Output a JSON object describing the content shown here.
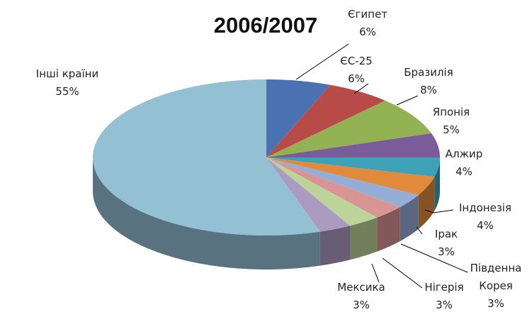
{
  "chart_data": {
    "type": "pie",
    "title": "2006/2007",
    "categories": [
      "Єгипет",
      "ЄС-25",
      "Бразилія",
      "Японія",
      "Алжир",
      "Індонезія",
      "Ірак",
      "Південна Корея",
      "Нігерія",
      "Мексика",
      "Інші країни"
    ],
    "values": [
      6,
      6,
      8,
      5,
      4,
      4,
      3,
      3,
      3,
      3,
      55
    ],
    "value_labels": [
      "6%",
      "6%",
      "8%",
      "5%",
      "4%",
      "4%",
      "3%",
      "3%",
      "3%",
      "3%",
      "55%"
    ],
    "colors": [
      "#4a72b0",
      "#b84a47",
      "#93b254",
      "#7a5c9a",
      "#3fa1b8",
      "#e08a3c",
      "#95aed6",
      "#d89593",
      "#bcd49a",
      "#ab9bc1",
      "#93c0d3"
    ]
  }
}
